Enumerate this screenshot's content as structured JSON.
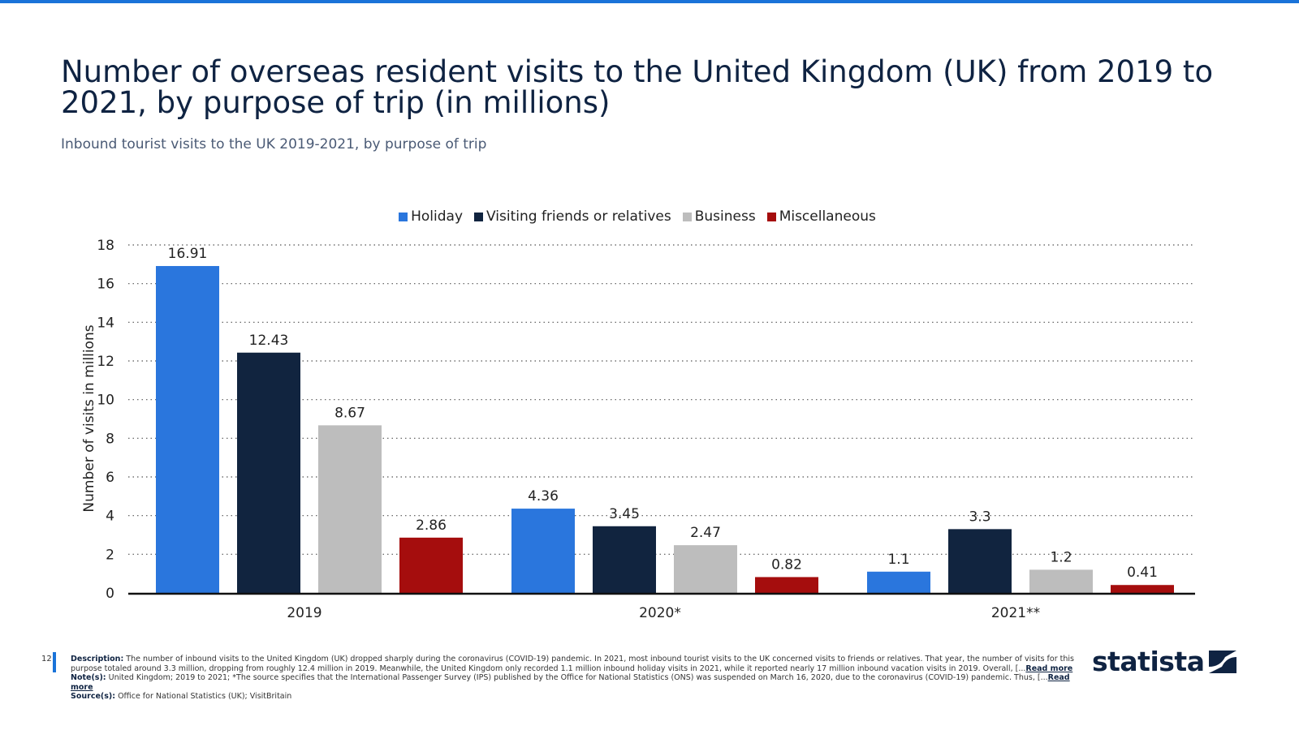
{
  "title": "Number of overseas resident visits to the United Kingdom (UK) from 2019 to 2021, by purpose of trip (in millions)",
  "subtitle": "Inbound tourist visits to the UK 2019-2021, by purpose of trip",
  "chart_data": {
    "type": "bar",
    "categories": [
      "2019",
      "2020*",
      "2021**"
    ],
    "series": [
      {
        "name": "Holiday",
        "color": "#2a76dd",
        "values": [
          16.91,
          4.36,
          1.1
        ]
      },
      {
        "name": "Visiting friends or relatives",
        "color": "#11243f",
        "values": [
          12.43,
          3.45,
          3.3
        ]
      },
      {
        "name": "Business",
        "color": "#bdbdbd",
        "values": [
          8.67,
          2.47,
          1.2
        ]
      },
      {
        "name": "Miscellaneous",
        "color": "#a50d0d",
        "values": [
          2.86,
          0.82,
          0.41
        ]
      }
    ],
    "ylabel": "Number of visits in millions",
    "xlabel": "",
    "ylim": [
      0,
      18
    ],
    "yticks": [
      0,
      2,
      4,
      6,
      8,
      10,
      12,
      14,
      16,
      18
    ],
    "grid": true,
    "legend_position": "top-center"
  },
  "footer": {
    "page_number": "12",
    "description_label": "Description:",
    "description": "The number of inbound visits to the United Kingdom (UK) dropped sharply during the coronavirus (COVID-19) pandemic. In 2021, most inbound tourist visits to the UK concerned visits to friends or relatives. That year, the number of visits for this purpose totaled around 3.3 million, dropping from roughly 12.4 million in 2019. Meanwhile, the United Kingdom only recorded 1.1 million inbound holiday visits in 2021, while it reported nearly 17 million inbound vacation visits in 2019. Overall, [...",
    "read_more": "Read more",
    "notes_label": "Note(s):",
    "notes": "United Kingdom; 2019 to 2021; *The source specifies that the International Passenger Survey (IPS) published by the Office for National Statistics (ONS) was suspended on March 16, 2020, due to the coronavirus (COVID-19) pandemic. Thus, [...",
    "sources_label": "Source(s):",
    "sources": "Office for National Statistics (UK); VisitBritain"
  },
  "logo": "statista"
}
